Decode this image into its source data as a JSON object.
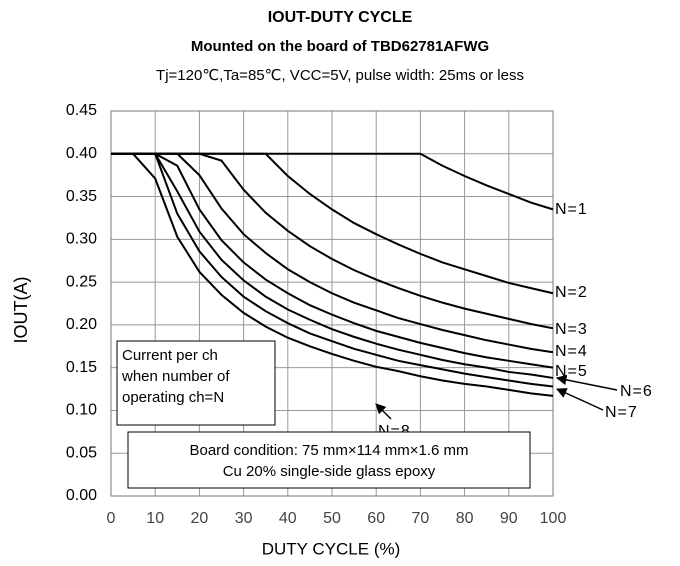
{
  "chart_data": {
    "type": "line",
    "title": "IOUT-DUTY CYCLE",
    "subtitle": "Mounted on the board of TBD62781AFWG",
    "conditions": "Tj=120℃,Ta=85℃, VCC=5V, pulse width: 25ms or less",
    "x_label": "DUTY CYCLE (%)",
    "y_label": "IOUT(A)",
    "annotations": [
      [
        "Current per ch",
        "when number of",
        "operating ch=N"
      ],
      [
        "Board condition: 75 mm×114 mm×1.6 mm",
        "Cu 20% single-side glass epoxy"
      ]
    ],
    "x": [
      0,
      5,
      10,
      15,
      20,
      25,
      30,
      35,
      40,
      45,
      50,
      55,
      60,
      65,
      70,
      75,
      80,
      85,
      90,
      95,
      100
    ],
    "series": [
      {
        "name": "N=1",
        "color": "#000000",
        "values": [
          0.4,
          0.4,
          0.4,
          0.4,
          0.4,
          0.4,
          0.4,
          0.4,
          0.4,
          0.4,
          0.4,
          0.4,
          0.4,
          0.4,
          0.4,
          0.386,
          0.374,
          0.363,
          0.353,
          0.343,
          0.335
        ]
      },
      {
        "name": "N=2",
        "color": "#000000",
        "values": [
          0.4,
          0.4,
          0.4,
          0.4,
          0.4,
          0.4,
          0.4,
          0.4,
          0.374,
          0.353,
          0.335,
          0.319,
          0.306,
          0.294,
          0.283,
          0.273,
          0.265,
          0.257,
          0.249,
          0.243,
          0.237
        ]
      },
      {
        "name": "N=3",
        "color": "#000000",
        "values": [
          0.4,
          0.4,
          0.4,
          0.4,
          0.4,
          0.392,
          0.358,
          0.331,
          0.31,
          0.292,
          0.277,
          0.264,
          0.253,
          0.243,
          0.234,
          0.226,
          0.219,
          0.213,
          0.207,
          0.201,
          0.196
        ]
      },
      {
        "name": "N=4",
        "color": "#000000",
        "values": [
          0.4,
          0.4,
          0.4,
          0.4,
          0.375,
          0.336,
          0.306,
          0.284,
          0.265,
          0.25,
          0.237,
          0.226,
          0.217,
          0.208,
          0.201,
          0.194,
          0.188,
          0.182,
          0.177,
          0.172,
          0.168
        ]
      },
      {
        "name": "N=5",
        "color": "#000000",
        "values": [
          0.4,
          0.4,
          0.4,
          0.386,
          0.335,
          0.299,
          0.273,
          0.253,
          0.237,
          0.223,
          0.212,
          0.202,
          0.193,
          0.186,
          0.179,
          0.173,
          0.167,
          0.162,
          0.158,
          0.154,
          0.15
        ]
      },
      {
        "name": "N=6",
        "color": "#000000",
        "values": [
          0.4,
          0.4,
          0.4,
          0.356,
          0.309,
          0.276,
          0.252,
          0.233,
          0.218,
          0.206,
          0.195,
          0.186,
          0.178,
          0.171,
          0.165,
          0.159,
          0.154,
          0.15,
          0.145,
          0.142,
          0.138
        ]
      },
      {
        "name": "N=7",
        "color": "#000000",
        "values": [
          0.4,
          0.4,
          0.4,
          0.33,
          0.286,
          0.256,
          0.233,
          0.216,
          0.202,
          0.19,
          0.181,
          0.172,
          0.165,
          0.158,
          0.153,
          0.148,
          0.143,
          0.139,
          0.135,
          0.131,
          0.128
        ]
      },
      {
        "name": "N=8",
        "color": "#000000",
        "values": [
          0.4,
          0.4,
          0.371,
          0.303,
          0.262,
          0.235,
          0.214,
          0.198,
          0.185,
          0.175,
          0.166,
          0.158,
          0.151,
          0.146,
          0.14,
          0.135,
          0.131,
          0.128,
          0.124,
          0.12,
          0.117
        ]
      }
    ],
    "xlim": [
      0,
      100
    ],
    "xticks": [
      0,
      10,
      20,
      30,
      40,
      50,
      60,
      70,
      80,
      90,
      100
    ],
    "ylim": [
      0,
      0.45
    ],
    "yticks": [
      {
        "value": 0,
        "label": "0.00"
      },
      {
        "value": 0.05,
        "label": "0.05"
      },
      {
        "value": 0.1,
        "label": "0.10"
      },
      {
        "value": 0.15,
        "label": "0.15"
      },
      {
        "value": 0.2,
        "label": "0.20"
      },
      {
        "value": 0.25,
        "label": "0.25"
      },
      {
        "value": 0.3,
        "label": "0.30"
      },
      {
        "value": 0.35,
        "label": "0.35"
      },
      {
        "value": 0.4,
        "label": "0.40"
      },
      {
        "value": 0.45,
        "label": "0.45"
      }
    ],
    "grid": true
  }
}
